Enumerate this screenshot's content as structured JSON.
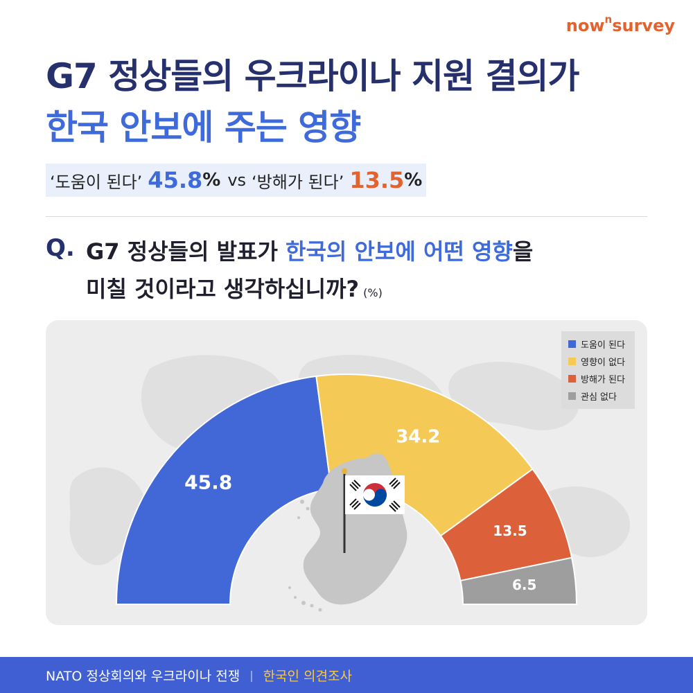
{
  "brand": {
    "logo_main": "now",
    "logo_sup": "n",
    "logo_tail": "survey"
  },
  "title_line1": "G7 정상들의 우크라이나 지원 결의가",
  "title_line2": "한국 안보에 주는 영향",
  "subtitle": {
    "left_label": "‘도움이 된다’",
    "left_value": "45.8",
    "vs": "vs",
    "right_label": "‘방해가 된다’",
    "right_value": "13.5",
    "percent": "%"
  },
  "question": {
    "mark": "Q.",
    "line1_pre": "G7 정상들의 발표가 ",
    "line1_highlight": "한국의 안보에 어떤 영향",
    "line1_post": "을",
    "line2": "미칠 것이라고 생각하십니까?",
    "unit": "(%)"
  },
  "chart_data": {
    "type": "pie",
    "subtype": "half-donut",
    "unit": "%",
    "categories": [
      "도움이 된다",
      "영향이 없다",
      "방해가 된다",
      "관심 없다"
    ],
    "values": [
      45.8,
      34.2,
      13.5,
      6.5
    ],
    "colors": [
      "#4168d6",
      "#f5c955",
      "#dc603a",
      "#9e9e9e"
    ],
    "label_colors": [
      "#ffffff",
      "#ffffff",
      "#ffffff",
      "#ffffff"
    ],
    "legend_position": "top-right"
  },
  "footer": {
    "left": "NATO 정상회의와 우크라이나 전쟁",
    "separator": "|",
    "right": "한국인 의견조사"
  }
}
